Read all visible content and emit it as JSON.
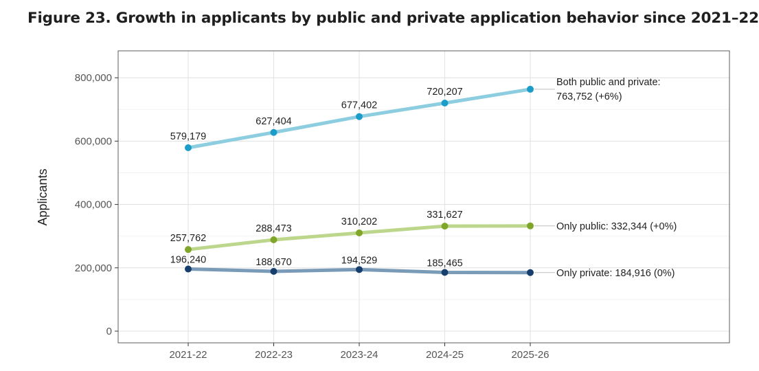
{
  "title": "Figure 23. Growth in applicants by public and private application behavior since 2021–22",
  "chart_data": {
    "type": "line",
    "title": "Figure 23. Growth in applicants by public and private application behavior since 2021–22",
    "xlabel": "",
    "ylabel": "Applicants",
    "categories": [
      "2021-22",
      "2022-23",
      "2023-24",
      "2024-25",
      "2025-26"
    ],
    "ylim": [
      0,
      850000
    ],
    "yticks": [
      0,
      200000,
      400000,
      600000,
      800000
    ],
    "ytick_labels": [
      "0",
      "200,000",
      "400,000",
      "600,000",
      "800,000"
    ],
    "grid": true,
    "legend": "direct labels at right end of each line",
    "series": [
      {
        "name": "Both public and private",
        "values": [
          579179,
          627404,
          677402,
          720207,
          763752
        ],
        "value_labels": [
          "579,179",
          "627,404",
          "677,402",
          "720,207"
        ],
        "end_label": [
          "Both public and private:",
          "763,752 (+6%)"
        ],
        "line_color": "#8ccde0",
        "point_color": "#1c9cc9"
      },
      {
        "name": "Only public",
        "values": [
          257762,
          288473,
          310202,
          331627,
          332344
        ],
        "value_labels": [
          "257,762",
          "288,473",
          "310,202",
          "331,627"
        ],
        "end_label": [
          "Only public: 332,344 (+0%)"
        ],
        "line_color": "#bcd78c",
        "point_color": "#7fa628"
      },
      {
        "name": "Only private",
        "values": [
          196240,
          188670,
          194529,
          185465,
          184916
        ],
        "value_labels": [
          "196,240",
          "188,670",
          "194,529",
          "185,465"
        ],
        "end_label": [
          "Only private: 184,916 (0%)"
        ],
        "line_color": "#7a9bb8",
        "point_color": "#163f6e"
      }
    ]
  }
}
